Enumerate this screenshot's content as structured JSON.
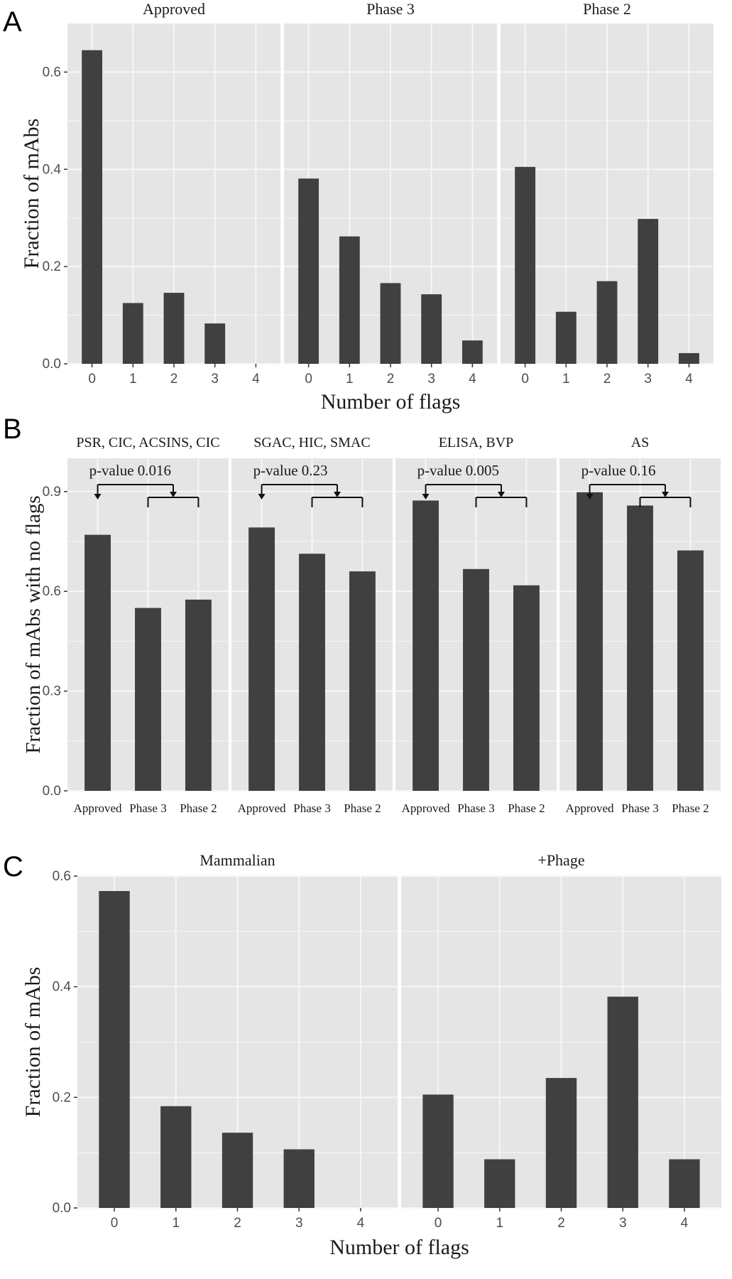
{
  "panel_labels": {
    "a": "A",
    "b": "B",
    "c": "C"
  },
  "colors": {
    "bar": "#404040",
    "panel_bg": "#e5e5e5",
    "grid": "#f6f6f6",
    "text": "#1a1a1a"
  },
  "chart_data": [
    {
      "id": "A",
      "type": "bar",
      "ylabel": "Fraction of mAbs",
      "xlabel": "Number of flags",
      "ylim": [
        0,
        0.7
      ],
      "yticks": [
        0.0,
        0.2,
        0.4,
        0.6
      ],
      "ytick_labels": [
        "0.0",
        "0.2",
        "0.4",
        "0.6"
      ],
      "grid": true,
      "facets": [
        {
          "title": "Approved",
          "categories": [
            "0",
            "1",
            "2",
            "3",
            "4"
          ],
          "values": [
            0.645,
            0.125,
            0.146,
            0.083,
            0
          ]
        },
        {
          "title": "Phase 3",
          "categories": [
            "0",
            "1",
            "2",
            "3",
            "4"
          ],
          "values": [
            0.381,
            0.262,
            0.166,
            0.143,
            0.048
          ]
        },
        {
          "title": "Phase 2",
          "categories": [
            "0",
            "1",
            "2",
            "3",
            "4"
          ],
          "values": [
            0.405,
            0.107,
            0.17,
            0.298,
            0.022
          ]
        }
      ]
    },
    {
      "id": "B",
      "type": "bar",
      "ylabel": "Fraction of mAbs with no flags",
      "xlabel": "",
      "ylim": [
        0,
        1.0
      ],
      "yticks": [
        0.0,
        0.3,
        0.6,
        0.9
      ],
      "ytick_labels": [
        "0.0",
        "0.3",
        "0.6",
        "0.9"
      ],
      "grid": true,
      "facets": [
        {
          "title": "PSR, CIC, ACSINS, CIC",
          "categories": [
            "Approved",
            "Phase 3",
            "Phase 2"
          ],
          "values": [
            0.77,
            0.55,
            0.575
          ],
          "annotation": "p-value 0.016"
        },
        {
          "title": "SGAC, HIC, SMAC",
          "categories": [
            "Approved",
            "Phase 3",
            "Phase 2"
          ],
          "values": [
            0.792,
            0.713,
            0.66
          ],
          "annotation": "p-value 0.23"
        },
        {
          "title": "ELISA, BVP",
          "categories": [
            "Approved",
            "Phase 3",
            "Phase 2"
          ],
          "values": [
            0.873,
            0.667,
            0.618
          ],
          "annotation": "p-value 0.005"
        },
        {
          "title": "AS",
          "categories": [
            "Approved",
            "Phase 3",
            "Phase 2"
          ],
          "values": [
            0.898,
            0.858,
            0.723
          ],
          "annotation": "p-value 0.16"
        }
      ]
    },
    {
      "id": "C",
      "type": "bar",
      "ylabel": "Fraction of mAbs",
      "xlabel": "Number of flags",
      "ylim": [
        0,
        0.6
      ],
      "yticks": [
        0.0,
        0.2,
        0.4,
        0.6
      ],
      "ytick_labels": [
        "0.0",
        "0.2",
        "0.4",
        "0.6"
      ],
      "grid": true,
      "facets": [
        {
          "title": "Mammalian",
          "categories": [
            "0",
            "1",
            "2",
            "3",
            "4"
          ],
          "values": [
            0.573,
            0.184,
            0.136,
            0.106,
            0
          ]
        },
        {
          "title": "+Phage",
          "categories": [
            "0",
            "1",
            "2",
            "3",
            "4"
          ],
          "values": [
            0.205,
            0.088,
            0.235,
            0.382,
            0.088
          ]
        }
      ]
    }
  ]
}
